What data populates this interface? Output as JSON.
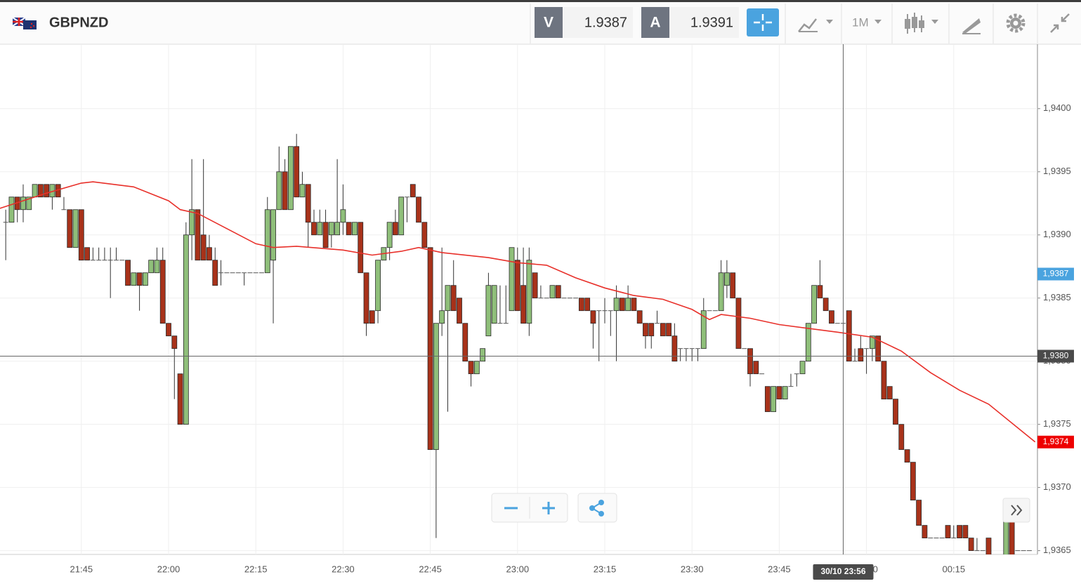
{
  "header": {
    "symbol": "GBPNZD",
    "sell": {
      "label": "V",
      "price": 1.9387
    },
    "buy": {
      "label": "A",
      "price": 1.9391
    },
    "timeframe": "1M"
  },
  "chart_data": {
    "type": "candlestick",
    "grid": true,
    "colors": {
      "up": "#8fbf7a",
      "down": "#a8321a"
    },
    "ylim": [
      1.93647,
      1.94051
    ],
    "yticks": [
      {
        "value": 1.9365,
        "label": "1,9365"
      },
      {
        "value": 1.937,
        "label": "1,9370"
      },
      {
        "value": 1.9375,
        "label": "1,9375"
      },
      {
        "value": 1.938,
        "label": "1,9380"
      },
      {
        "value": 1.9385,
        "label": "1,9385"
      },
      {
        "value": 1.939,
        "label": "1,9390"
      },
      {
        "value": 1.9395,
        "label": "1,9395"
      },
      {
        "value": 1.94,
        "label": "1,9400"
      }
    ],
    "xticks": [
      "21:45",
      "22:00",
      "22:15",
      "22:30",
      "22:45",
      "23:00",
      "23:15",
      "23:30",
      "23:45",
      "00:00",
      "00:15"
    ],
    "x": [
      "21:32",
      "21:33",
      "21:34",
      "21:35",
      "21:36",
      "21:37",
      "21:38",
      "21:39",
      "21:40",
      "21:41",
      "21:42",
      "21:43",
      "21:44",
      "21:45",
      "21:46",
      "21:47",
      "21:48",
      "21:49",
      "21:50",
      "21:51",
      "21:52",
      "21:53",
      "21:54",
      "21:55",
      "21:56",
      "21:57",
      "21:58",
      "21:59",
      "22:00",
      "22:01",
      "22:02",
      "22:03",
      "22:04",
      "22:05",
      "22:06",
      "22:07",
      "22:08",
      "22:09",
      "22:10",
      "22:11",
      "22:12",
      "22:13",
      "22:14",
      "22:15",
      "22:16",
      "22:17",
      "22:18",
      "22:19",
      "22:20",
      "22:21",
      "22:22",
      "22:23",
      "22:24",
      "22:25",
      "22:26",
      "22:27",
      "22:28",
      "22:29",
      "22:30",
      "22:31",
      "22:32",
      "22:33",
      "22:34",
      "22:35",
      "22:36",
      "22:37",
      "22:38",
      "22:39",
      "22:40",
      "22:41",
      "22:42",
      "22:43",
      "22:44",
      "22:45",
      "22:46",
      "22:47",
      "22:48",
      "22:49",
      "22:50",
      "22:51",
      "22:52",
      "22:53",
      "22:54",
      "22:55",
      "22:56",
      "22:57",
      "22:58",
      "22:59",
      "23:00",
      "23:01",
      "23:02",
      "23:03",
      "23:04",
      "23:05",
      "23:06",
      "23:07",
      "23:08",
      "23:09",
      "23:10",
      "23:11",
      "23:12",
      "23:13",
      "23:14",
      "23:15",
      "23:16",
      "23:17",
      "23:18",
      "23:19",
      "23:20",
      "23:21",
      "23:22",
      "23:23",
      "23:24",
      "23:25",
      "23:26",
      "23:27",
      "23:28",
      "23:29",
      "23:30",
      "23:31",
      "23:32",
      "23:33",
      "23:34",
      "23:35",
      "23:36",
      "23:37",
      "23:38",
      "23:39",
      "23:40",
      "23:41",
      "23:42",
      "23:43",
      "23:44",
      "23:45",
      "23:46",
      "23:47",
      "23:48",
      "23:49",
      "23:50",
      "23:51",
      "23:52",
      "23:53",
      "23:54",
      "23:55",
      "23:56",
      "23:57",
      "23:58",
      "23:59",
      "00:00",
      "00:01",
      "00:02",
      "00:03",
      "00:04",
      "00:05",
      "00:06",
      "00:07",
      "00:08",
      "00:09",
      "00:10",
      "00:11",
      "00:12",
      "00:13",
      "00:14",
      "00:15",
      "00:16",
      "00:17",
      "00:18",
      "00:19",
      "00:20",
      "00:21",
      "00:22",
      "00:23",
      "00:24",
      "00:25",
      "00:26",
      "00:27",
      "00:28"
    ],
    "ohlc": [
      [
        1.9391,
        1.9392,
        1.9388,
        1.9391
      ],
      [
        1.9391,
        1.9393,
        1.9391,
        1.9393
      ],
      [
        1.9393,
        1.9393,
        1.9391,
        1.9392
      ],
      [
        1.9392,
        1.9394,
        1.9391,
        1.9393
      ],
      [
        1.9392,
        1.9393,
        1.9392,
        1.9393
      ],
      [
        1.9393,
        1.9394,
        1.9393,
        1.9394
      ],
      [
        1.9394,
        1.9394,
        1.9393,
        1.9393
      ],
      [
        1.9394,
        1.9394,
        1.9393,
        1.9393
      ],
      [
        1.9393,
        1.9394,
        1.9392,
        1.9394
      ],
      [
        1.9394,
        1.9394,
        1.9393,
        1.9393
      ],
      [
        1.9392,
        1.9393,
        1.9392,
        1.9392
      ],
      [
        1.9392,
        1.9392,
        1.9389,
        1.9389
      ],
      [
        1.9389,
        1.9392,
        1.9389,
        1.9392
      ],
      [
        1.9392,
        1.9392,
        1.9388,
        1.9388
      ],
      [
        1.9389,
        1.9389,
        1.9388,
        1.9388
      ],
      [
        1.9388,
        1.9389,
        1.9388,
        1.9388
      ],
      [
        1.9388,
        1.9389,
        1.9388,
        1.9388
      ],
      [
        1.9388,
        1.9389,
        1.9388,
        1.9388
      ],
      [
        1.9388,
        1.9389,
        1.9385,
        1.9388
      ],
      [
        1.9388,
        1.9389,
        1.9388,
        1.9388
      ],
      [
        1.9388,
        1.9388,
        1.9388,
        1.9388
      ],
      [
        1.9388,
        1.9388,
        1.9386,
        1.9386
      ],
      [
        1.9386,
        1.9387,
        1.9386,
        1.9387
      ],
      [
        1.9387,
        1.9387,
        1.9384,
        1.9386
      ],
      [
        1.9386,
        1.9387,
        1.9386,
        1.9387
      ],
      [
        1.9387,
        1.9388,
        1.9387,
        1.9388
      ],
      [
        1.9387,
        1.9389,
        1.9387,
        1.9388
      ],
      [
        1.9388,
        1.9389,
        1.9383,
        1.9383
      ],
      [
        1.9383,
        1.9383,
        1.9382,
        1.9382
      ],
      [
        1.9382,
        1.9382,
        1.9377,
        1.9381
      ],
      [
        1.9379,
        1.9379,
        1.9375,
        1.9375
      ],
      [
        1.9375,
        1.9391,
        1.9375,
        1.939
      ],
      [
        1.939,
        1.9396,
        1.9388,
        1.9392
      ],
      [
        1.9392,
        1.9392,
        1.9388,
        1.9388
      ],
      [
        1.939,
        1.9396,
        1.9388,
        1.9388
      ],
      [
        1.9389,
        1.939,
        1.9388,
        1.9388
      ],
      [
        1.9388,
        1.9389,
        1.9386,
        1.9386
      ],
      [
        1.9387,
        1.9388,
        1.9386,
        1.9387
      ],
      [
        1.9387,
        1.9387,
        1.9387,
        1.9387
      ],
      [
        1.9387,
        1.9387,
        1.9387,
        1.9387
      ],
      [
        1.9387,
        1.9387,
        1.9387,
        1.9387
      ],
      [
        1.9387,
        1.9387,
        1.9386,
        1.9387
      ],
      [
        1.9387,
        1.9387,
        1.9387,
        1.9387
      ],
      [
        1.9387,
        1.9387,
        1.9387,
        1.9387
      ],
      [
        1.9387,
        1.9387,
        1.9387,
        1.9387
      ],
      [
        1.9387,
        1.9393,
        1.9387,
        1.9392
      ],
      [
        1.9388,
        1.9392,
        1.9383,
        1.9392
      ],
      [
        1.9392,
        1.9397,
        1.9392,
        1.9395
      ],
      [
        1.9395,
        1.9396,
        1.9392,
        1.9392
      ],
      [
        1.9392,
        1.9397,
        1.9392,
        1.9397
      ],
      [
        1.9397,
        1.9398,
        1.9393,
        1.9393
      ],
      [
        1.9393,
        1.9395,
        1.9393,
        1.9394
      ],
      [
        1.9394,
        1.9394,
        1.9389,
        1.9391
      ],
      [
        1.9391,
        1.9392,
        1.939,
        1.939
      ],
      [
        1.939,
        1.9392,
        1.939,
        1.9391
      ],
      [
        1.9391,
        1.9392,
        1.9389,
        1.9389
      ],
      [
        1.939,
        1.9391,
        1.9389,
        1.9391
      ],
      [
        1.939,
        1.9396,
        1.939,
        1.9391
      ],
      [
        1.9391,
        1.9394,
        1.939,
        1.9392
      ],
      [
        1.9391,
        1.9391,
        1.939,
        1.939
      ],
      [
        1.939,
        1.9391,
        1.939,
        1.9391
      ],
      [
        1.9391,
        1.9391,
        1.9387,
        1.9387
      ],
      [
        1.9387,
        1.9387,
        1.9382,
        1.9383
      ],
      [
        1.9384,
        1.9384,
        1.9383,
        1.9383
      ],
      [
        1.9384,
        1.9388,
        1.9383,
        1.9388
      ],
      [
        1.9388,
        1.9389,
        1.9388,
        1.9389
      ],
      [
        1.9389,
        1.9391,
        1.9388,
        1.9391
      ],
      [
        1.9391,
        1.9392,
        1.939,
        1.939
      ],
      [
        1.939,
        1.9393,
        1.939,
        1.9393
      ],
      [
        1.9393,
        1.9393,
        1.9391,
        1.9393
      ],
      [
        1.9394,
        1.9394,
        1.9393,
        1.9393
      ],
      [
        1.9393,
        1.9393,
        1.9391,
        1.9391
      ],
      [
        1.9391,
        1.9391,
        1.9389,
        1.9389
      ],
      [
        1.9389,
        1.9389,
        1.9373,
        1.9373
      ],
      [
        1.9373,
        1.9383,
        1.9366,
        1.9383
      ],
      [
        1.9383,
        1.9389,
        1.9382,
        1.9384
      ],
      [
        1.9384,
        1.9386,
        1.9376,
        1.9386
      ],
      [
        1.9386,
        1.9388,
        1.9384,
        1.9384
      ],
      [
        1.9385,
        1.9385,
        1.9383,
        1.9383
      ],
      [
        1.9383,
        1.9383,
        1.938,
        1.938
      ],
      [
        1.938,
        1.938,
        1.9378,
        1.9379
      ],
      [
        1.9379,
        1.938,
        1.9379,
        1.938
      ],
      [
        1.938,
        1.9381,
        1.938,
        1.9381
      ],
      [
        1.9382,
        1.9387,
        1.9382,
        1.9386
      ],
      [
        1.9383,
        1.9386,
        1.9383,
        1.9386
      ],
      [
        1.9383,
        1.9386,
        1.9383,
        1.9383
      ],
      [
        1.9383,
        1.9386,
        1.9383,
        1.9383
      ],
      [
        1.9384,
        1.9389,
        1.9384,
        1.9389
      ],
      [
        1.9388,
        1.9389,
        1.9384,
        1.9384
      ],
      [
        1.9386,
        1.9389,
        1.9383,
        1.9383
      ],
      [
        1.9383,
        1.9389,
        1.9382,
        1.9388
      ],
      [
        1.9387,
        1.9387,
        1.9385,
        1.9385
      ],
      [
        1.9385,
        1.9386,
        1.9385,
        1.9385
      ],
      [
        1.9385,
        1.9385,
        1.9385,
        1.9385
      ],
      [
        1.9385,
        1.9386,
        1.9385,
        1.9386
      ],
      [
        1.9386,
        1.9386,
        1.9385,
        1.9385
      ],
      [
        1.9385,
        1.9385,
        1.9385,
        1.9385
      ],
      [
        1.9385,
        1.9385,
        1.9385,
        1.9385
      ],
      [
        1.9385,
        1.9385,
        1.9385,
        1.9385
      ],
      [
        1.9385,
        1.9385,
        1.9384,
        1.9384
      ],
      [
        1.9385,
        1.9385,
        1.9384,
        1.9384
      ],
      [
        1.9384,
        1.9384,
        1.9381,
        1.9383
      ],
      [
        1.9384,
        1.9384,
        1.938,
        1.9384
      ],
      [
        1.9384,
        1.9385,
        1.9383,
        1.9384
      ],
      [
        1.9384,
        1.9384,
        1.9382,
        1.9384
      ],
      [
        1.9384,
        1.9386,
        1.938,
        1.9385
      ],
      [
        1.9385,
        1.9385,
        1.9384,
        1.9384
      ],
      [
        1.9384,
        1.9386,
        1.9384,
        1.9385
      ],
      [
        1.9385,
        1.9385,
        1.9384,
        1.9384
      ],
      [
        1.9384,
        1.9384,
        1.9383,
        1.9383
      ],
      [
        1.9383,
        1.9383,
        1.9381,
        1.9382
      ],
      [
        1.9383,
        1.9383,
        1.9381,
        1.9382
      ],
      [
        1.9383,
        1.9384,
        1.9383,
        1.9383
      ],
      [
        1.9383,
        1.9383,
        1.9382,
        1.9382
      ],
      [
        1.9383,
        1.9383,
        1.9382,
        1.9382
      ],
      [
        1.9382,
        1.9383,
        1.938,
        1.938
      ],
      [
        1.9381,
        1.9381,
        1.938,
        1.9381
      ],
      [
        1.9381,
        1.9381,
        1.938,
        1.9381
      ],
      [
        1.9381,
        1.9381,
        1.938,
        1.9381
      ],
      [
        1.9381,
        1.9381,
        1.938,
        1.9381
      ],
      [
        1.9381,
        1.9385,
        1.9381,
        1.9384
      ],
      [
        1.9384,
        1.9384,
        1.9384,
        1.9384
      ],
      [
        1.9384,
        1.9384,
        1.9384,
        1.9384
      ],
      [
        1.9384,
        1.9388,
        1.9384,
        1.9387
      ],
      [
        1.9386,
        1.9388,
        1.9385,
        1.9387
      ],
      [
        1.9387,
        1.9387,
        1.9385,
        1.9385
      ],
      [
        1.9385,
        1.9385,
        1.9381,
        1.9381
      ],
      [
        1.9381,
        1.9381,
        1.9381,
        1.9381
      ],
      [
        1.9381,
        1.9381,
        1.9378,
        1.9379
      ],
      [
        1.938,
        1.938,
        1.9379,
        1.9379
      ],
      [
        1.9379,
        1.9379,
        1.9379,
        1.9379
      ],
      [
        1.9378,
        1.9378,
        1.9376,
        1.9376
      ],
      [
        1.9376,
        1.9378,
        1.9376,
        1.9378
      ],
      [
        1.9378,
        1.9378,
        1.9377,
        1.9377
      ],
      [
        1.9377,
        1.9378,
        1.9377,
        1.9378
      ],
      [
        1.9378,
        1.9379,
        1.9378,
        1.9378
      ],
      [
        1.9379,
        1.9379,
        1.9378,
        1.9379
      ],
      [
        1.9379,
        1.938,
        1.9379,
        1.938
      ],
      [
        1.938,
        1.9383,
        1.938,
        1.9383
      ],
      [
        1.9383,
        1.9386,
        1.9383,
        1.9386
      ],
      [
        1.9386,
        1.9388,
        1.9385,
        1.9385
      ],
      [
        1.9385,
        1.9385,
        1.9384,
        1.9384
      ],
      [
        1.9384,
        1.9384,
        1.9383,
        1.9383
      ],
      [
        1.9383,
        1.9383,
        1.9383,
        1.9383
      ],
      [
        1.9383,
        1.9383,
        1.9382,
        1.9383
      ],
      [
        1.9384,
        1.9384,
        1.938,
        1.938
      ],
      [
        1.938,
        1.9381,
        1.938,
        1.938
      ],
      [
        1.9381,
        1.9382,
        1.938,
        1.938
      ],
      [
        1.9381,
        1.9381,
        1.9379,
        1.9381
      ],
      [
        1.9381,
        1.9382,
        1.938,
        1.9382
      ],
      [
        1.9382,
        1.9382,
        1.938,
        1.938
      ],
      [
        1.938,
        1.938,
        1.9377,
        1.9377
      ],
      [
        1.9378,
        1.9378,
        1.9377,
        1.9377
      ],
      [
        1.9377,
        1.9377,
        1.9375,
        1.9375
      ],
      [
        1.9375,
        1.9375,
        1.9373,
        1.9373
      ],
      [
        1.9373,
        1.9373,
        1.9372,
        1.9372
      ],
      [
        1.9372,
        1.9372,
        1.9369,
        1.9369
      ],
      [
        1.9369,
        1.9369,
        1.9367,
        1.9367
      ],
      [
        1.9367,
        1.9367,
        1.9366,
        1.9366
      ],
      [
        1.9366,
        1.9366,
        1.9366,
        1.9366
      ],
      [
        1.9366,
        1.9366,
        1.9366,
        1.9366
      ],
      [
        1.9366,
        1.9366,
        1.9366,
        1.9366
      ],
      [
        1.9367,
        1.9367,
        1.9366,
        1.9366
      ],
      [
        1.9366,
        1.9367,
        1.9366,
        1.9366
      ],
      [
        1.9367,
        1.9367,
        1.9366,
        1.9366
      ],
      [
        1.9367,
        1.9367,
        1.9366,
        1.9366
      ],
      [
        1.9366,
        1.9366,
        1.9365,
        1.9365
      ],
      [
        1.9365,
        1.9366,
        1.9365,
        1.9365
      ],
      [
        1.9365,
        1.9365,
        1.9365,
        1.9365
      ],
      [
        1.9366,
        1.9366,
        1.9364,
        1.9364
      ],
      [
        1.9364,
        1.9364,
        1.9364,
        1.9364
      ],
      [
        1.9364,
        1.9364,
        1.9364,
        1.9364
      ],
      [
        1.9364,
        1.9368,
        1.9364,
        1.9368
      ],
      [
        1.9368,
        1.9368,
        1.9364,
        1.9364
      ],
      [
        1.9365,
        1.9365,
        1.9365,
        1.9365
      ],
      [
        1.9365,
        1.9365,
        1.9365,
        1.9365
      ],
      [
        1.9365,
        1.9365,
        1.9365,
        1.9365
      ]
    ],
    "moving_average": {
      "color": "#e8302a",
      "x": [
        "21:31",
        "21:39",
        "21:45",
        "21:47",
        "21:54",
        "22:00",
        "22:02",
        "22:05",
        "22:10",
        "22:15",
        "22:18",
        "22:22",
        "22:30",
        "22:35",
        "22:40",
        "22:43",
        "22:47",
        "22:55",
        "23:00",
        "23:05",
        "23:10",
        "23:15",
        "23:20",
        "23:25",
        "23:30",
        "23:33",
        "23:35",
        "23:40",
        "23:45",
        "23:50",
        "23:55",
        "00:01",
        "00:06",
        "00:11",
        "00:16",
        "00:21",
        "00:29"
      ],
      "values": [
        1.93921,
        1.93933,
        1.93941,
        1.93942,
        1.93938,
        1.93927,
        1.9392,
        1.93917,
        1.93905,
        1.93893,
        1.9389,
        1.93891,
        1.93888,
        1.93884,
        1.93887,
        1.9389,
        1.93886,
        1.93882,
        1.93878,
        1.93876,
        1.93866,
        1.93858,
        1.93852,
        1.93849,
        1.93841,
        1.93833,
        1.93837,
        1.93834,
        1.93829,
        1.93826,
        1.93823,
        1.93819,
        1.93808,
        1.93791,
        1.93777,
        1.93766,
        1.93736
      ]
    },
    "price_tags": [
      {
        "value": 1.93869,
        "label": "1,9387",
        "color": "#4aa3df"
      },
      {
        "value": 1.93736,
        "label": "1,9374",
        "color": "#ee0000"
      }
    ],
    "crosshair": {
      "time": "30/10 23:56",
      "price": {
        "value": 1.93804,
        "label": "1,9380"
      }
    }
  }
}
